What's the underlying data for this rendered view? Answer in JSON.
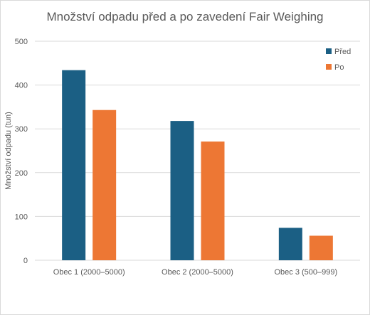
{
  "chart_data": {
    "type": "bar",
    "title": "Množství odpadu před a po zavedení Fair Weighing",
    "xlabel": "",
    "ylabel": "Množství odpadu (tun)",
    "categories": [
      "Obec 1 (2000–5000)",
      "Obec 2 (2000–5000)",
      "Obec 3 (500–999)"
    ],
    "series": [
      {
        "name": "Před",
        "values": [
          434,
          318,
          74
        ],
        "color": "#1b5f84"
      },
      {
        "name": "Po",
        "values": [
          343,
          271,
          56
        ],
        "color": "#ed7734"
      }
    ],
    "ylim": [
      0,
      500
    ],
    "yticks": [
      "0",
      "100",
      "200",
      "300",
      "400",
      "500"
    ],
    "grid": true,
    "legend": "right"
  }
}
